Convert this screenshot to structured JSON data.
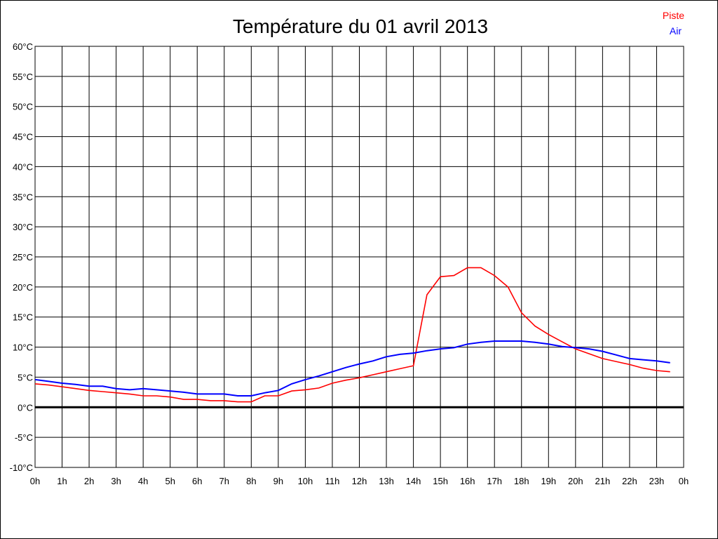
{
  "chart_data": {
    "type": "line",
    "title": "Température du 01 avril 2013",
    "xlabel": "",
    "ylabel": "",
    "ylim": [
      -10,
      60
    ],
    "xlim": [
      0,
      24
    ],
    "grid": true,
    "legend_position": "top-right",
    "y_ticks": [
      "-10°C",
      "-5°C",
      "0°C",
      "5°C",
      "10°C",
      "15°C",
      "20°C",
      "25°C",
      "30°C",
      "35°C",
      "40°C",
      "45°C",
      "50°C",
      "55°C",
      "60°C"
    ],
    "x_ticks": [
      "0h",
      "1h",
      "2h",
      "3h",
      "4h",
      "5h",
      "6h",
      "7h",
      "8h",
      "9h",
      "10h",
      "11h",
      "12h",
      "13h",
      "14h",
      "15h",
      "16h",
      "17h",
      "18h",
      "19h",
      "20h",
      "21h",
      "22h",
      "23h",
      "0h"
    ],
    "x": [
      0,
      0.5,
      1,
      1.5,
      2,
      2.5,
      3,
      3.5,
      4,
      4.5,
      5,
      5.5,
      6,
      6.5,
      7,
      7.5,
      8,
      8.5,
      9,
      9.5,
      10,
      10.5,
      11,
      11.5,
      12,
      12.5,
      13,
      13.5,
      14,
      14.5,
      15,
      15.5,
      16,
      16.5,
      17,
      17.5,
      18,
      18.5,
      19,
      19.5,
      20,
      20.5,
      21,
      21.5,
      22,
      22.5,
      23,
      23.5
    ],
    "series": [
      {
        "name": "Piste",
        "color": "#ff0000",
        "values": [
          3.9,
          3.7,
          3.4,
          3.1,
          2.8,
          2.6,
          2.4,
          2.2,
          1.9,
          1.9,
          1.7,
          1.3,
          1.3,
          1.1,
          1.1,
          0.9,
          0.9,
          1.9,
          1.9,
          2.7,
          2.9,
          3.2,
          4.0,
          4.5,
          4.9,
          5.4,
          5.9,
          6.4,
          6.9,
          18.7,
          21.7,
          21.9,
          23.2,
          23.2,
          21.9,
          20.0,
          15.7,
          13.5,
          12.1,
          10.9,
          9.7,
          8.9,
          8.1,
          7.6,
          7.1,
          6.5,
          6.1,
          5.9
        ]
      },
      {
        "name": "Air",
        "color": "#0000ff",
        "values": [
          4.6,
          4.3,
          4.0,
          3.8,
          3.5,
          3.5,
          3.1,
          2.9,
          3.1,
          2.9,
          2.7,
          2.5,
          2.2,
          2.2,
          2.2,
          1.9,
          1.9,
          2.4,
          2.8,
          3.9,
          4.6,
          5.2,
          5.9,
          6.6,
          7.2,
          7.7,
          8.4,
          8.8,
          9.0,
          9.4,
          9.7,
          9.9,
          10.5,
          10.8,
          11.0,
          11.0,
          11.0,
          10.8,
          10.5,
          10.1,
          9.9,
          9.7,
          9.3,
          8.7,
          8.1,
          7.9,
          7.7,
          7.4
        ]
      }
    ]
  }
}
